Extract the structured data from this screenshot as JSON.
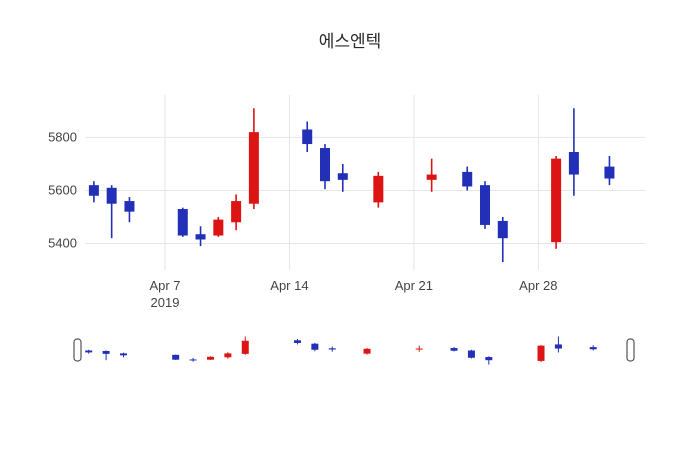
{
  "chart_data": {
    "type": "candlestick",
    "title": "에스엔텍",
    "up_color": "#dc1414",
    "down_color": "#2230b8",
    "grid_color": "#e6e6e6",
    "series": [
      {
        "date": "2019-04-03",
        "open": 5620,
        "high": 5635,
        "low": 5555,
        "close": 5580
      },
      {
        "date": "2019-04-04",
        "open": 5610,
        "high": 5620,
        "low": 5420,
        "close": 5550
      },
      {
        "date": "2019-04-05",
        "open": 5560,
        "high": 5575,
        "low": 5480,
        "close": 5520
      },
      {
        "date": "2019-04-08",
        "open": 5530,
        "high": 5535,
        "low": 5425,
        "close": 5430
      },
      {
        "date": "2019-04-09",
        "open": 5435,
        "high": 5465,
        "low": 5390,
        "close": 5415
      },
      {
        "date": "2019-04-10",
        "open": 5430,
        "high": 5500,
        "low": 5425,
        "close": 5490
      },
      {
        "date": "2019-04-11",
        "open": 5480,
        "high": 5585,
        "low": 5450,
        "close": 5560
      },
      {
        "date": "2019-04-12",
        "open": 5550,
        "high": 5910,
        "low": 5530,
        "close": 5820
      },
      {
        "date": "2019-04-15",
        "open": 5830,
        "high": 5860,
        "low": 5745,
        "close": 5775
      },
      {
        "date": "2019-04-16",
        "open": 5760,
        "high": 5775,
        "low": 5605,
        "close": 5635
      },
      {
        "date": "2019-04-17",
        "open": 5665,
        "high": 5700,
        "low": 5595,
        "close": 5640
      },
      {
        "date": "2019-04-19",
        "open": 5555,
        "high": 5670,
        "low": 5535,
        "close": 5655
      },
      {
        "date": "2019-04-22",
        "open": 5640,
        "high": 5720,
        "low": 5595,
        "close": 5660
      },
      {
        "date": "2019-04-24",
        "open": 5670,
        "high": 5690,
        "low": 5600,
        "close": 5615
      },
      {
        "date": "2019-04-25",
        "open": 5620,
        "high": 5635,
        "low": 5455,
        "close": 5470
      },
      {
        "date": "2019-04-26",
        "open": 5485,
        "high": 5500,
        "low": 5330,
        "close": 5420
      },
      {
        "date": "2019-04-29",
        "open": 5405,
        "high": 5730,
        "low": 5380,
        "close": 5720
      },
      {
        "date": "2019-04-30",
        "open": 5745,
        "high": 5910,
        "low": 5580,
        "close": 5660
      },
      {
        "date": "2019-05-02",
        "open": 5690,
        "high": 5730,
        "low": 5620,
        "close": 5645
      }
    ],
    "xaxis": {
      "domain": [
        "2019-04-02T12:00:00",
        "2019-05-04T00:00:00"
      ],
      "ticks": [
        {
          "date": "2019-04-07",
          "label": "Apr 7",
          "sublabel": "2019"
        },
        {
          "date": "2019-04-14",
          "label": "Apr 14",
          "sublabel": ""
        },
        {
          "date": "2019-04-21",
          "label": "Apr 21",
          "sublabel": ""
        },
        {
          "date": "2019-04-28",
          "label": "Apr 28",
          "sublabel": ""
        }
      ]
    },
    "yaxis": {
      "range": [
        5300,
        5960
      ],
      "ticks": [
        5400,
        5600,
        5800
      ]
    },
    "rangeslider": true
  }
}
